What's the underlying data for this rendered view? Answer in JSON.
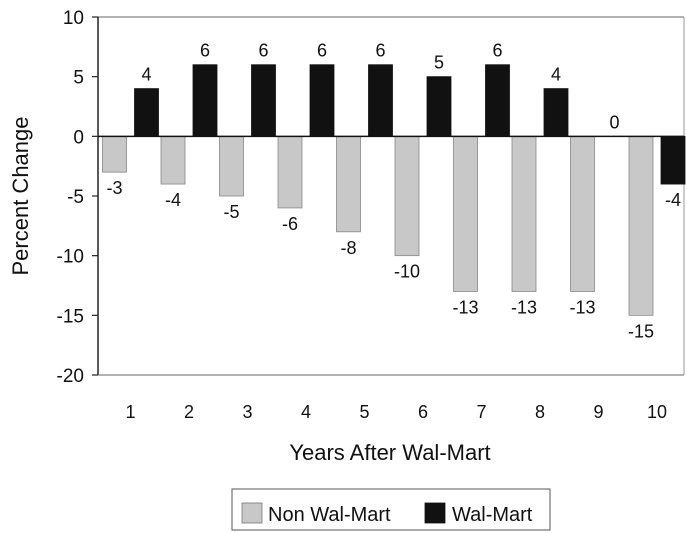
{
  "chart_data": {
    "type": "bar",
    "categories": [
      "1",
      "2",
      "3",
      "4",
      "5",
      "6",
      "7",
      "8",
      "9",
      "10"
    ],
    "series": [
      {
        "name": "Non Wal-Mart",
        "values": [
          -3,
          -4,
          -5,
          -6,
          -8,
          -10,
          -13,
          -13,
          -13,
          -15
        ],
        "color": "#c8c8c8"
      },
      {
        "name": "Wal-Mart",
        "values": [
          4,
          6,
          6,
          6,
          6,
          5,
          6,
          4,
          0,
          -4
        ],
        "color": "#111111"
      }
    ],
    "data_labels": {
      "Non Wal-Mart": [
        "-3",
        "-4",
        "-5",
        "-6",
        "-8",
        "-10",
        "-13",
        "-13",
        "-13",
        "-15"
      ],
      "Wal-Mart": [
        "4",
        "6",
        "6",
        "6",
        "6",
        "5",
        "6",
        "4",
        "0",
        "-4"
      ]
    },
    "yticks": [
      "10",
      "5",
      "0",
      "-5",
      "-10",
      "-15",
      "-20"
    ],
    "ylim": [
      -20,
      10
    ],
    "xlabel": "Years After Wal-Mart",
    "ylabel": "Percent Change",
    "title": "",
    "legend": {
      "position": "bottom",
      "items": [
        "Non Wal-Mart",
        "Wal-Mart"
      ]
    },
    "grid": false
  }
}
